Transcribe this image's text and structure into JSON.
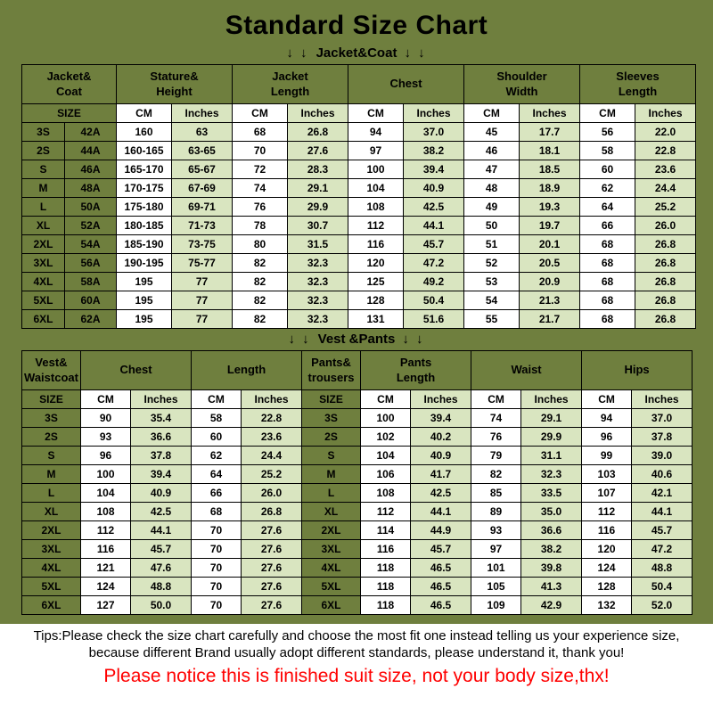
{
  "page_title": "Standard Size Chart",
  "colors": {
    "background_green": "#6f7f3e",
    "cell_white": "#ffffff",
    "cell_light_green": "#d9e5c0",
    "border": "#000000",
    "notice_red": "#ff0000"
  },
  "sections": [
    {
      "arrows_left": "↓ ↓",
      "heading": "Jacket&Coat",
      "arrows_right": "↓ ↓"
    },
    {
      "arrows_left": "↓ ↓",
      "heading": "Vest &Pants",
      "arrows_right": "↓ ↓"
    }
  ],
  "chart_data": [
    {
      "type": "table",
      "title": "Jacket&Coat",
      "group_headers": [
        {
          "label": "Jacket&\nCoat",
          "span": 2
        },
        {
          "label": "Stature&\nHeight",
          "span": 2
        },
        {
          "label": "Jacket\nLength",
          "span": 2
        },
        {
          "label": "Chest",
          "span": 2
        },
        {
          "label": "Shoulder\nWidth",
          "span": 2
        },
        {
          "label": "Sleeves\nLength",
          "span": 2
        }
      ],
      "sub_headers": [
        {
          "label": "SIZE",
          "span": 2,
          "kind": "size"
        },
        {
          "label": "CM",
          "span": 1,
          "kind": "cm"
        },
        {
          "label": "Inches",
          "span": 1,
          "kind": "inches"
        },
        {
          "label": "CM",
          "span": 1,
          "kind": "cm"
        },
        {
          "label": "Inches",
          "span": 1,
          "kind": "inches"
        },
        {
          "label": "CM",
          "span": 1,
          "kind": "cm"
        },
        {
          "label": "Inches",
          "span": 1,
          "kind": "inches"
        },
        {
          "label": "CM",
          "span": 1,
          "kind": "cm"
        },
        {
          "label": "Inches",
          "span": 1,
          "kind": "inches"
        },
        {
          "label": "CM",
          "span": 1,
          "kind": "cm"
        },
        {
          "label": "Inches",
          "span": 1,
          "kind": "inches"
        }
      ],
      "rows": [
        [
          "3S",
          "42A",
          "160",
          "63",
          "68",
          "26.8",
          "94",
          "37.0",
          "45",
          "17.7",
          "56",
          "22.0"
        ],
        [
          "2S",
          "44A",
          "160-165",
          "63-65",
          "70",
          "27.6",
          "97",
          "38.2",
          "46",
          "18.1",
          "58",
          "22.8"
        ],
        [
          "S",
          "46A",
          "165-170",
          "65-67",
          "72",
          "28.3",
          "100",
          "39.4",
          "47",
          "18.5",
          "60",
          "23.6"
        ],
        [
          "M",
          "48A",
          "170-175",
          "67-69",
          "74",
          "29.1",
          "104",
          "40.9",
          "48",
          "18.9",
          "62",
          "24.4"
        ],
        [
          "L",
          "50A",
          "175-180",
          "69-71",
          "76",
          "29.9",
          "108",
          "42.5",
          "49",
          "19.3",
          "64",
          "25.2"
        ],
        [
          "XL",
          "52A",
          "180-185",
          "71-73",
          "78",
          "30.7",
          "112",
          "44.1",
          "50",
          "19.7",
          "66",
          "26.0"
        ],
        [
          "2XL",
          "54A",
          "185-190",
          "73-75",
          "80",
          "31.5",
          "116",
          "45.7",
          "51",
          "20.1",
          "68",
          "26.8"
        ],
        [
          "3XL",
          "56A",
          "190-195",
          "75-77",
          "82",
          "32.3",
          "120",
          "47.2",
          "52",
          "20.5",
          "68",
          "26.8"
        ],
        [
          "4XL",
          "58A",
          "195",
          "77",
          "82",
          "32.3",
          "125",
          "49.2",
          "53",
          "20.9",
          "68",
          "26.8"
        ],
        [
          "5XL",
          "60A",
          "195",
          "77",
          "82",
          "32.3",
          "128",
          "50.4",
          "54",
          "21.3",
          "68",
          "26.8"
        ],
        [
          "6XL",
          "62A",
          "195",
          "77",
          "82",
          "32.3",
          "131",
          "51.6",
          "55",
          "21.7",
          "68",
          "26.8"
        ]
      ]
    },
    {
      "type": "table",
      "title": "Vest &Pants",
      "group_headers": [
        {
          "label": "Vest&\nWaistcoat",
          "span": 1
        },
        {
          "label": "Chest",
          "span": 2
        },
        {
          "label": "Length",
          "span": 2
        },
        {
          "label": "Pants&\ntrousers",
          "span": 1
        },
        {
          "label": "Pants\nLength",
          "span": 2
        },
        {
          "label": "Waist",
          "span": 2
        },
        {
          "label": "Hips",
          "span": 2
        }
      ],
      "sub_headers": [
        {
          "label": "SIZE",
          "span": 1,
          "kind": "size"
        },
        {
          "label": "CM",
          "span": 1,
          "kind": "cm"
        },
        {
          "label": "Inches",
          "span": 1,
          "kind": "inches"
        },
        {
          "label": "CM",
          "span": 1,
          "kind": "cm"
        },
        {
          "label": "Inches",
          "span": 1,
          "kind": "inches"
        },
        {
          "label": "SIZE",
          "span": 1,
          "kind": "size"
        },
        {
          "label": "CM",
          "span": 1,
          "kind": "cm"
        },
        {
          "label": "Inches",
          "span": 1,
          "kind": "inches"
        },
        {
          "label": "CM",
          "span": 1,
          "kind": "cm"
        },
        {
          "label": "Inches",
          "span": 1,
          "kind": "inches"
        },
        {
          "label": "CM",
          "span": 1,
          "kind": "cm"
        },
        {
          "label": "Inches",
          "span": 1,
          "kind": "inches"
        }
      ],
      "rows": [
        [
          "3S",
          "90",
          "35.4",
          "58",
          "22.8",
          "3S",
          "100",
          "39.4",
          "74",
          "29.1",
          "94",
          "37.0"
        ],
        [
          "2S",
          "93",
          "36.6",
          "60",
          "23.6",
          "2S",
          "102",
          "40.2",
          "76",
          "29.9",
          "96",
          "37.8"
        ],
        [
          "S",
          "96",
          "37.8",
          "62",
          "24.4",
          "S",
          "104",
          "40.9",
          "79",
          "31.1",
          "99",
          "39.0"
        ],
        [
          "M",
          "100",
          "39.4",
          "64",
          "25.2",
          "M",
          "106",
          "41.7",
          "82",
          "32.3",
          "103",
          "40.6"
        ],
        [
          "L",
          "104",
          "40.9",
          "66",
          "26.0",
          "L",
          "108",
          "42.5",
          "85",
          "33.5",
          "107",
          "42.1"
        ],
        [
          "XL",
          "108",
          "42.5",
          "68",
          "26.8",
          "XL",
          "112",
          "44.1",
          "89",
          "35.0",
          "112",
          "44.1"
        ],
        [
          "2XL",
          "112",
          "44.1",
          "70",
          "27.6",
          "2XL",
          "114",
          "44.9",
          "93",
          "36.6",
          "116",
          "45.7"
        ],
        [
          "3XL",
          "116",
          "45.7",
          "70",
          "27.6",
          "3XL",
          "116",
          "45.7",
          "97",
          "38.2",
          "120",
          "47.2"
        ],
        [
          "4XL",
          "121",
          "47.6",
          "70",
          "27.6",
          "4XL",
          "118",
          "46.5",
          "101",
          "39.8",
          "124",
          "48.8"
        ],
        [
          "5XL",
          "124",
          "48.8",
          "70",
          "27.6",
          "5XL",
          "118",
          "46.5",
          "105",
          "41.3",
          "128",
          "50.4"
        ],
        [
          "6XL",
          "127",
          "50.0",
          "70",
          "27.6",
          "6XL",
          "118",
          "46.5",
          "109",
          "42.9",
          "132",
          "52.0"
        ]
      ]
    }
  ],
  "footer": {
    "tips_line1": "Tips:Please check the size chart carefully and choose the most fit one instead telling us your experience size,",
    "tips_line2": "because different Brand usually adopt different standards, please understand it, thank you!",
    "notice": "Please notice this is finished suit size, not your body size,thx!"
  }
}
